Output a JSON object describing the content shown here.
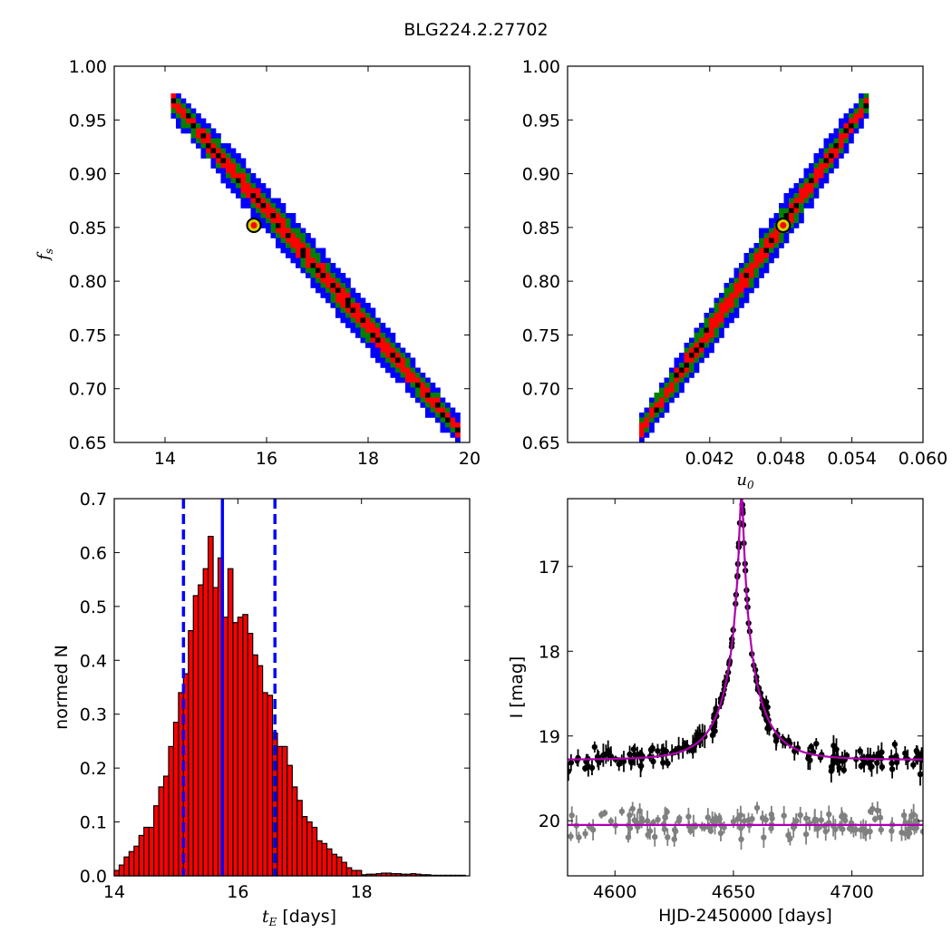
{
  "figure": {
    "title": "BLG224.2.27702"
  },
  "chart_data": [
    {
      "id": "tE-fs",
      "type": "heatmap",
      "xlim": [
        13,
        20
      ],
      "ylim": [
        0.65,
        1.0
      ],
      "xticks": [
        "14",
        "16",
        "18",
        "20"
      ],
      "yticks": [
        "0.65",
        "0.70",
        "0.75",
        "0.80",
        "0.85",
        "0.90",
        "0.95",
        "1.00"
      ],
      "xtick_values": [
        14,
        16,
        18,
        20
      ],
      "ytick_values": [
        0.65,
        0.7,
        0.75,
        0.8,
        0.85,
        0.9,
        0.95,
        1.0
      ],
      "xlabel": "",
      "ylabel": "f",
      "ylabel_sub": "s",
      "ridge": [
        [
          14.1,
          0.97
        ],
        [
          19.8,
          0.66
        ]
      ],
      "best_fit": {
        "x": 15.75,
        "y": 0.852
      },
      "levels": [
        {
          "color": "#0000ff",
          "halfwidth": 0.022
        },
        {
          "color": "#008000",
          "halfwidth": 0.014
        },
        {
          "color": "#ff0000",
          "halfwidth": 0.008
        },
        {
          "color": "#000000",
          "halfwidth": 0.003
        }
      ]
    },
    {
      "id": "u0-fs",
      "type": "heatmap",
      "xlim": [
        0.03,
        0.06
      ],
      "ylim": [
        0.65,
        1.0
      ],
      "xticks": [
        "0.042",
        "0.048",
        "0.054",
        "0.060"
      ],
      "yticks": [
        "0.65",
        "0.70",
        "0.75",
        "0.80",
        "0.85",
        "0.90",
        "0.95",
        "1.00"
      ],
      "xtick_values": [
        0.042,
        0.048,
        0.054,
        0.06
      ],
      "ytick_values": [
        0.65,
        0.7,
        0.75,
        0.8,
        0.85,
        0.9,
        0.95,
        1.0
      ],
      "xlabel": "u",
      "xlabel_sub": "0",
      "ridge": [
        [
          0.0361,
          0.66
        ],
        [
          0.0555,
          0.97
        ]
      ],
      "best_fit": {
        "x": 0.0482,
        "y": 0.852
      },
      "levels": [
        {
          "color": "#0000ff",
          "halfwidth": 0.022
        },
        {
          "color": "#008000",
          "halfwidth": 0.014
        },
        {
          "color": "#ff0000",
          "halfwidth": 0.008
        },
        {
          "color": "#000000",
          "halfwidth": 0.003
        }
      ]
    },
    {
      "id": "tE-hist",
      "type": "bar",
      "xlim": [
        14,
        19.75
      ],
      "ylim": [
        0,
        0.7
      ],
      "xticks": [
        "14",
        "16",
        "18"
      ],
      "xtick_values": [
        14,
        16,
        18
      ],
      "yticks": [
        "0.0",
        "0.1",
        "0.2",
        "0.3",
        "0.4",
        "0.5",
        "0.6",
        "0.7"
      ],
      "ytick_values": [
        0,
        0.1,
        0.2,
        0.3,
        0.4,
        0.5,
        0.6,
        0.7
      ],
      "xlabel_math": "t",
      "xlabel_sub": "E",
      "xlabel": "[days]",
      "ylabel": "normed N",
      "bin_start": 14.0,
      "bin_width": 0.08,
      "values": [
        0.01,
        0.02,
        0.035,
        0.045,
        0.055,
        0.075,
        0.09,
        0.09,
        0.13,
        0.165,
        0.185,
        0.24,
        0.285,
        0.34,
        0.375,
        0.455,
        0.52,
        0.54,
        0.57,
        0.63,
        0.535,
        0.59,
        0.48,
        0.57,
        0.47,
        0.48,
        0.485,
        0.45,
        0.41,
        0.39,
        0.34,
        0.335,
        0.265,
        0.24,
        0.24,
        0.205,
        0.165,
        0.14,
        0.11,
        0.1,
        0.09,
        0.065,
        0.06,
        0.05,
        0.04,
        0.035,
        0.025,
        0.015,
        0.01,
        0.01,
        0.002,
        0.003,
        0.003,
        0.004,
        0.005,
        0.005,
        0.004,
        0.004,
        0.003,
        0.003,
        0.004,
        0.003,
        0.002,
        0.002,
        0.001,
        0.001,
        0.001,
        0.001,
        0.001,
        0.001,
        0.001
      ],
      "bar_color": "#ff0000",
      "lines": [
        {
          "x": 15.75,
          "style": "solid",
          "color": "#0000ff"
        },
        {
          "x": 15.12,
          "style": "dashed",
          "color": "#0000ff"
        },
        {
          "x": 16.6,
          "style": "dashed",
          "color": "#0000ff"
        }
      ]
    },
    {
      "id": "lightcurve",
      "type": "scatter",
      "xlim": [
        4580,
        4730
      ],
      "ylim": [
        20.65,
        16.2
      ],
      "xticks": [
        "4600",
        "4650",
        "4700"
      ],
      "xtick_values": [
        4600,
        4650,
        4700
      ],
      "yticks": [
        "17",
        "18",
        "19",
        "20"
      ],
      "ytick_values": [
        17,
        18,
        19,
        20
      ],
      "xlabel": "HJD-2450000 [days]",
      "ylabel": "I [mag]",
      "model": {
        "t0": 4653.4,
        "tE": 15.75,
        "u0": 0.048,
        "fs": 0.852,
        "baseline": 19.28,
        "color": "#b000b0"
      },
      "residual_baseline": 20.05,
      "series": [
        {
          "color": "#000000",
          "seed": 7
        },
        {
          "color": "#808080",
          "seed": 13
        }
      ]
    }
  ]
}
